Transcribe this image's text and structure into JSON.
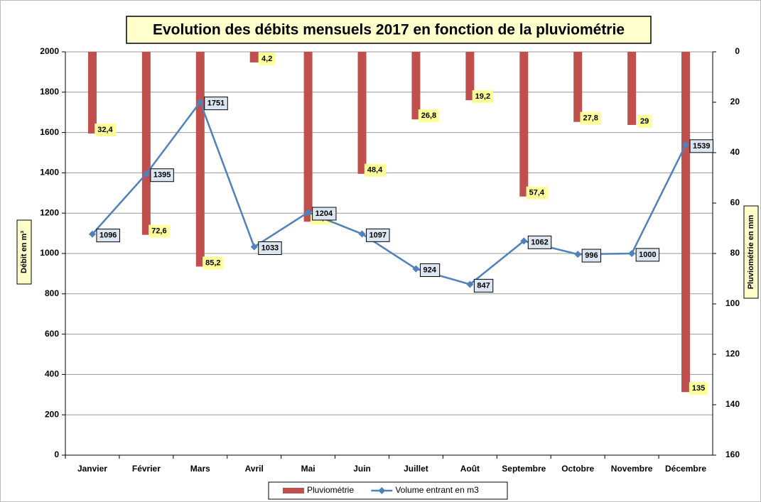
{
  "chart_data": {
    "type": "combo",
    "title": "Evolution des débits mensuels 2017 en fonction de la pluviométrie",
    "y_label": "Débit en m³",
    "y2_label": "Pluviométrie en mm",
    "categories": [
      "Janvier",
      "Février",
      "Mars",
      "Avril",
      "Mai",
      "Juin",
      "Juillet",
      "Août",
      "Septembre",
      "Octobre",
      "Novembre",
      "Décembre"
    ],
    "series": [
      {
        "name": "Pluviométrie",
        "type": "bar",
        "axis": "y2",
        "color": "#c0504d",
        "values": [
          32.4,
          72.6,
          85.2,
          4.2,
          67.4,
          48.4,
          26.8,
          19.2,
          57.4,
          27.8,
          29,
          135
        ],
        "value_labels": [
          "32,4",
          "72,6",
          "85,2",
          "4,2",
          "67,4",
          "48,4",
          "26,8",
          "19,2",
          "57,4",
          "27,8",
          "29",
          "135"
        ]
      },
      {
        "name": "Volume entrant en m3",
        "type": "line",
        "color": "#4f81bd",
        "values": [
          1096,
          1395,
          1751,
          1033,
          1204,
          1097,
          924,
          847,
          1062,
          996,
          1000,
          1539
        ]
      }
    ],
    "ylim": [
      0,
      2000
    ],
    "yticks": [
      0,
      200,
      400,
      600,
      800,
      1000,
      1200,
      1400,
      1600,
      1800,
      2000
    ],
    "y2lim": [
      0,
      160
    ],
    "y2ticks": [
      0,
      20,
      40,
      60,
      80,
      100,
      120,
      140,
      160
    ],
    "y2_reversed": true,
    "grid": true,
    "legend": "bottom"
  }
}
